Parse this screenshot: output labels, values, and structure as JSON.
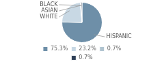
{
  "chart_data": {
    "type": "pie",
    "categories": [
      "HISPANIC",
      "WHITE",
      "ASIAN",
      "BLACK"
    ],
    "values": [
      75.3,
      23.2,
      0.7,
      0.7
    ],
    "value_labels": [
      "75.3%",
      "23.2%",
      "0.7%",
      "0.7%"
    ],
    "colors": [
      "#6e8fa8",
      "#c8d8e4",
      "#b0c4d0",
      "#2e4057"
    ],
    "legend": "bottom"
  }
}
